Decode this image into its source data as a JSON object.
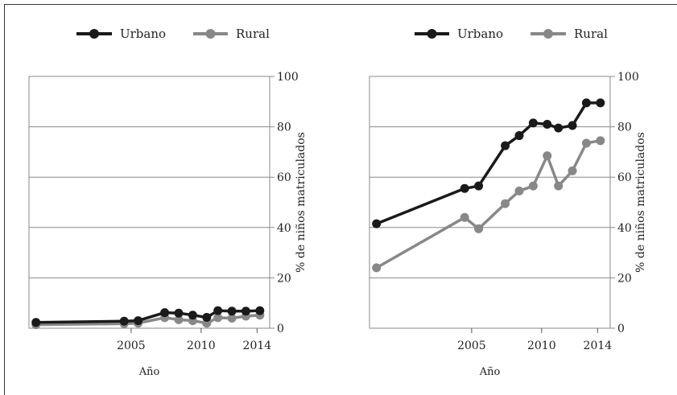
{
  "chart_data": [
    {
      "type": "line",
      "xlabel": "Año",
      "ylabel": "% de niños matriculados",
      "ylim": [
        0,
        100
      ],
      "yticks": [
        0,
        20,
        40,
        60,
        80,
        100
      ],
      "xticks": [
        2005,
        2010,
        2014
      ],
      "grid": true,
      "legend_position": "top",
      "series": [
        {
          "name": "Urbano",
          "color": "#1a1a1a",
          "x": [
            1998.2,
            2004.5,
            2005.5,
            2007.4,
            2008.4,
            2009.4,
            2010.4,
            2011.2,
            2012.2,
            2013.2,
            2014.2
          ],
          "y": [
            2.3,
            2.8,
            3.0,
            6.2,
            6.0,
            5.2,
            4.3,
            7.0,
            6.8,
            6.8,
            7.0
          ]
        },
        {
          "name": "Rural",
          "color": "#888888",
          "x": [
            1998.2,
            2004.5,
            2005.5,
            2007.4,
            2008.4,
            2009.4,
            2010.4,
            2011.2,
            2012.2,
            2013.2,
            2014.2
          ],
          "y": [
            1.4,
            1.8,
            2.0,
            4.2,
            3.4,
            3.0,
            2.0,
            4.2,
            4.0,
            4.8,
            5.2
          ]
        }
      ]
    },
    {
      "type": "line",
      "xlabel": "Año",
      "ylabel": "% de niños matriculados",
      "ylim": [
        0,
        100
      ],
      "yticks": [
        0,
        20,
        40,
        60,
        80,
        100
      ],
      "xticks": [
        2005,
        2010,
        2014
      ],
      "grid": true,
      "legend_position": "top",
      "series": [
        {
          "name": "Urbano",
          "color": "#1a1a1a",
          "x": [
            1998.2,
            2004.5,
            2005.5,
            2007.4,
            2008.4,
            2009.4,
            2010.4,
            2011.2,
            2012.2,
            2013.2,
            2014.2
          ],
          "y": [
            41.5,
            55.5,
            56.5,
            72.5,
            76.5,
            81.5,
            81.0,
            79.5,
            80.5,
            89.5,
            89.5
          ]
        },
        {
          "name": "Rural",
          "color": "#888888",
          "x": [
            1998.2,
            2004.5,
            2005.5,
            2007.4,
            2008.4,
            2009.4,
            2010.4,
            2011.2,
            2012.2,
            2013.2,
            2014.2
          ],
          "y": [
            24.0,
            44.0,
            39.5,
            49.5,
            54.5,
            56.5,
            68.5,
            56.5,
            62.5,
            73.5,
            74.5
          ]
        }
      ]
    }
  ]
}
